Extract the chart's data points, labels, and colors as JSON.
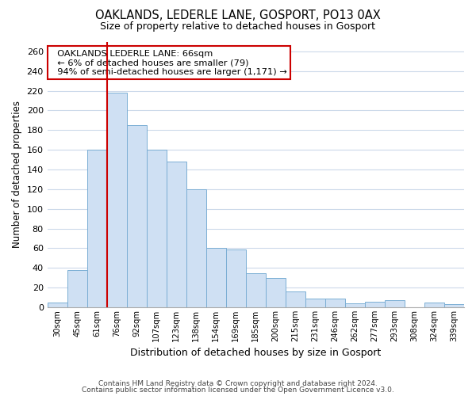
{
  "title": "OAKLANDS, LEDERLE LANE, GOSPORT, PO13 0AX",
  "subtitle": "Size of property relative to detached houses in Gosport",
  "xlabel": "Distribution of detached houses by size in Gosport",
  "ylabel": "Number of detached properties",
  "categories": [
    "30sqm",
    "45sqm",
    "61sqm",
    "76sqm",
    "92sqm",
    "107sqm",
    "123sqm",
    "138sqm",
    "154sqm",
    "169sqm",
    "185sqm",
    "200sqm",
    "215sqm",
    "231sqm",
    "246sqm",
    "262sqm",
    "277sqm",
    "293sqm",
    "308sqm",
    "324sqm",
    "339sqm"
  ],
  "values": [
    5,
    38,
    160,
    218,
    185,
    160,
    148,
    120,
    60,
    59,
    35,
    30,
    16,
    9,
    9,
    4,
    6,
    7,
    0,
    5,
    3
  ],
  "bar_color": "#cfe0f3",
  "bar_edge_color": "#7baed4",
  "redline_x": 2.5,
  "ylim": [
    0,
    270
  ],
  "yticks": [
    0,
    20,
    40,
    60,
    80,
    100,
    120,
    140,
    160,
    180,
    200,
    220,
    240,
    260
  ],
  "annotation_title": "OAKLANDS LEDERLE LANE: 66sqm",
  "annotation_line1": "← 6% of detached houses are smaller (79)",
  "annotation_line2": "94% of semi-detached houses are larger (1,171) →",
  "annotation_box_color": "#ffffff",
  "annotation_box_edge": "#cc0000",
  "redline_color": "#cc0000",
  "footer1": "Contains HM Land Registry data © Crown copyright and database right 2024.",
  "footer2": "Contains public sector information licensed under the Open Government Licence v3.0.",
  "background_color": "#ffffff",
  "grid_color": "#ccd9ea"
}
